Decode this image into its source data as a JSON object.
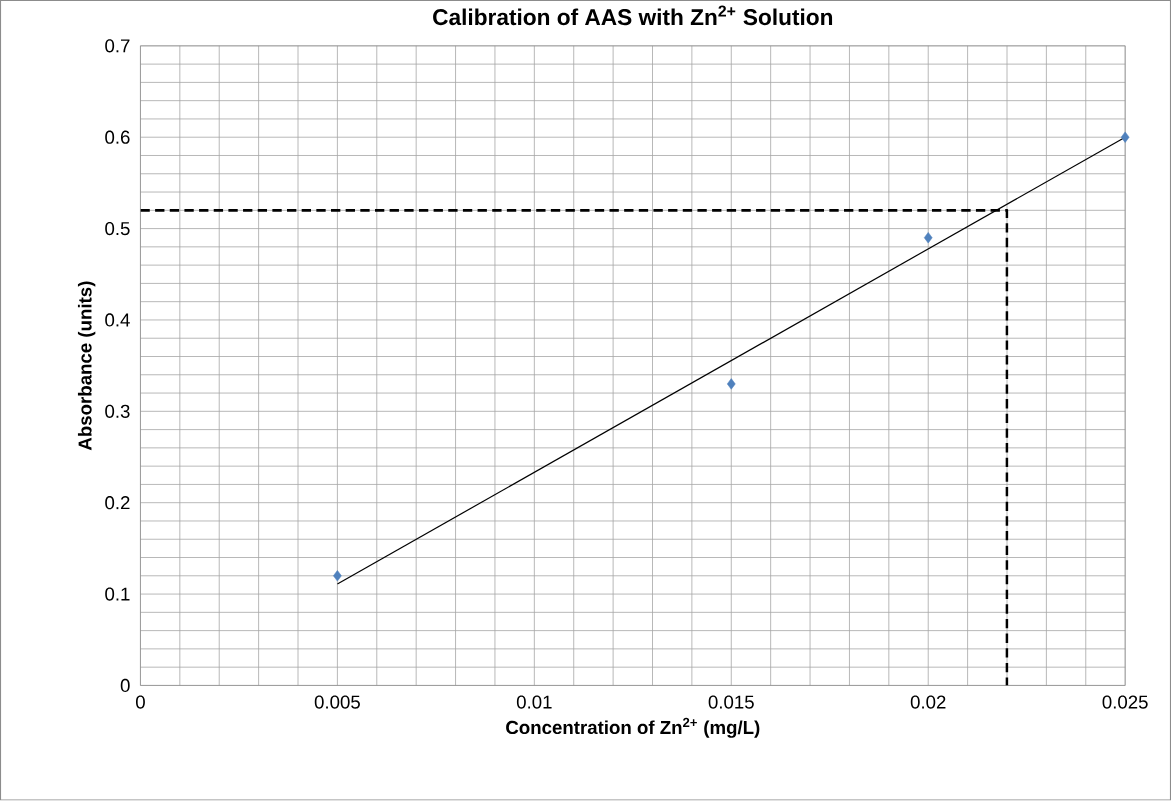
{
  "chart_data": {
    "type": "scatter",
    "title": "Calibration of AAS with Zn$^{2+}$ Solution",
    "xlabel": "Concentration of Zn$^{2+}$ (mg/L)",
    "ylabel": "Absorbance (units)",
    "x": [
      0.005,
      0.015,
      0.02,
      0.025
    ],
    "series": [
      {
        "color": "#4f81bd",
        "marker": "diamond",
        "values": [
          0.12,
          0.33,
          0.49,
          0.6
        ]
      },
      {
        "type": "line",
        "color": "#000000",
        "marker": "none",
        "line_style": "solid",
        "x": [
          0.005,
          0.025
        ],
        "values": [
          0.111,
          0.6
        ]
      },
      {
        "type": "line",
        "color": "#000000",
        "marker": "none",
        "line_style": "dashed",
        "x": [
          0,
          0.022,
          0.022
        ],
        "values": [
          0.52,
          0.52,
          0
        ]
      }
    ],
    "xlim": [
      0,
      0.025
    ],
    "ylim": [
      0,
      0.7
    ],
    "xticks": [
      0,
      0.005,
      0.01,
      0.015,
      0.02,
      0.025
    ],
    "yticks": [
      0,
      0.1,
      0.2,
      0.3,
      0.4,
      0.5,
      0.6,
      0.7
    ],
    "grid": true
  }
}
